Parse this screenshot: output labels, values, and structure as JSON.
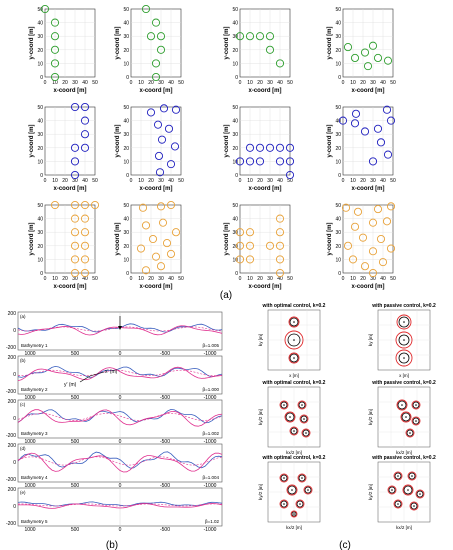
{
  "figure": {
    "label_a": "(a)",
    "label_b": "(b)",
    "label_c": "(c)"
  },
  "colors": {
    "green": "#2e9e2e",
    "blue": "#1f1fbf",
    "orange": "#e8a23a",
    "bathy_blue": "#3a5fbf",
    "bathy_pink": "#e0308f",
    "red_ring": "#e0282b"
  },
  "layouts": {
    "axis_labels": {
      "xlabel": "x-coord [m]",
      "ylabel": "y-coord [m]"
    },
    "ticks": [
      "0",
      "10",
      "20",
      "30",
      "40",
      "50"
    ],
    "rows": [
      {
        "color": "green",
        "panels": [
          [
            [
              0,
              50
            ],
            [
              10,
              40
            ],
            [
              10,
              30
            ],
            [
              10,
              20
            ],
            [
              10,
              10
            ],
            [
              10,
              0
            ]
          ],
          [
            [
              15,
              50
            ],
            [
              25,
              40
            ],
            [
              20,
              30
            ],
            [
              30,
              30
            ],
            [
              30,
              20
            ],
            [
              25,
              10
            ],
            [
              25,
              0
            ]
          ],
          [
            [
              0,
              30
            ],
            [
              10,
              30
            ],
            [
              20,
              30
            ],
            [
              30,
              30
            ],
            [
              30,
              20
            ],
            [
              40,
              10
            ]
          ],
          [
            [
              5,
              22
            ],
            [
              12,
              14
            ],
            [
              22,
              18
            ],
            [
              30,
              23
            ],
            [
              35,
              14
            ],
            [
              45,
              12
            ],
            [
              25,
              8
            ]
          ]
        ]
      },
      {
        "color": "blue",
        "panels": [
          [
            [
              30,
              50
            ],
            [
              40,
              50
            ],
            [
              40,
              40
            ],
            [
              40,
              30
            ],
            [
              40,
              20
            ],
            [
              30,
              20
            ],
            [
              30,
              10
            ],
            [
              30,
              0
            ]
          ],
          [
            [
              20,
              46
            ],
            [
              33,
              49
            ],
            [
              45,
              48
            ],
            [
              27,
              37
            ],
            [
              38,
              34
            ],
            [
              31,
              26
            ],
            [
              44,
              21
            ],
            [
              28,
              14
            ],
            [
              40,
              8
            ],
            [
              29,
              2
            ]
          ],
          [
            [
              0,
              10
            ],
            [
              10,
              20
            ],
            [
              20,
              20
            ],
            [
              30,
              20
            ],
            [
              40,
              20
            ],
            [
              50,
              20
            ],
            [
              50,
              10
            ],
            [
              10,
              10
            ],
            [
              20,
              10
            ],
            [
              40,
              10
            ],
            [
              50,
              0
            ]
          ],
          [
            [
              0,
              40
            ],
            [
              13,
              45
            ],
            [
              22,
              32
            ],
            [
              35,
              34
            ],
            [
              44,
              48
            ],
            [
              48,
              40
            ],
            [
              38,
              24
            ],
            [
              30,
              10
            ],
            [
              45,
              15
            ],
            [
              12,
              38
            ]
          ]
        ]
      },
      {
        "color": "orange",
        "panels": [
          [
            [
              10,
              50
            ],
            [
              30,
              50
            ],
            [
              40,
              50
            ],
            [
              50,
              50
            ],
            [
              30,
              40
            ],
            [
              40,
              40
            ],
            [
              30,
              30
            ],
            [
              40,
              30
            ],
            [
              30,
              20
            ],
            [
              40,
              20
            ],
            [
              30,
              10
            ],
            [
              40,
              10
            ],
            [
              30,
              0
            ],
            [
              40,
              0
            ]
          ],
          [
            [
              12,
              48
            ],
            [
              30,
              49
            ],
            [
              40,
              50
            ],
            [
              15,
              35
            ],
            [
              32,
              37
            ],
            [
              45,
              30
            ],
            [
              22,
              25
            ],
            [
              36,
              22
            ],
            [
              10,
              18
            ],
            [
              25,
              12
            ],
            [
              40,
              14
            ],
            [
              30,
              5
            ],
            [
              15,
              2
            ]
          ],
          [
            [
              0,
              30
            ],
            [
              10,
              30
            ],
            [
              10,
              20
            ],
            [
              0,
              20
            ],
            [
              10,
              10
            ],
            [
              0,
              10
            ],
            [
              40,
              40
            ],
            [
              40,
              30
            ],
            [
              40,
              20
            ],
            [
              40,
              10
            ],
            [
              40,
              0
            ],
            [
              30,
              20
            ]
          ],
          [
            [
              3,
              48
            ],
            [
              15,
              45
            ],
            [
              35,
              47
            ],
            [
              48,
              49
            ],
            [
              12,
              34
            ],
            [
              30,
              37
            ],
            [
              44,
              38
            ],
            [
              20,
              26
            ],
            [
              38,
              25
            ],
            [
              5,
              20
            ],
            [
              48,
              18
            ],
            [
              30,
              16
            ],
            [
              10,
              10
            ],
            [
              22,
              5
            ],
            [
              40,
              8
            ],
            [
              30,
              0
            ]
          ]
        ]
      }
    ]
  },
  "bathymetry": {
    "y_ticks": [
      "200",
      "0",
      "-200"
    ],
    "x_ticks": [
      "1000",
      "500",
      "0",
      "-500",
      "-1000"
    ],
    "panels": [
      {
        "tag": "(a)",
        "name": "Bathymetry 1",
        "ratio": "β=1.005"
      },
      {
        "tag": "(b)",
        "name": "Bathymetry 2",
        "ratio": "β=1.000"
      },
      {
        "tag": "(c)",
        "name": "Bathymetry 3",
        "ratio": "β=1.002"
      },
      {
        "tag": "(d)",
        "name": "Bathymetry 4",
        "ratio": "β=1.004"
      },
      {
        "tag": "(e)",
        "name": "Bathymetry 5",
        "ratio": "β=1.02"
      }
    ],
    "annot_x": "x' (m)",
    "annot_y": "y' (m)"
  },
  "control": {
    "titles": [
      "with optimal control, k=0.2",
      "with passive control, k=0.2",
      "with optimal control, k=0.2",
      "with passive control, k=0.2",
      "with optimal control, k=0.2",
      "with passive control, k=0.2"
    ],
    "xlabels": [
      "x [m]",
      "x [m]",
      "kx/2 [m]",
      "kx/2 [m]",
      "kx/2 [m]",
      "kx/2 [m]"
    ],
    "ylabels": [
      "ky [m]",
      "ky [m]",
      "ky/2 [m]",
      "ky/2 [m]",
      "ky/2 [m]",
      "ky/2 [m]"
    ]
  }
}
